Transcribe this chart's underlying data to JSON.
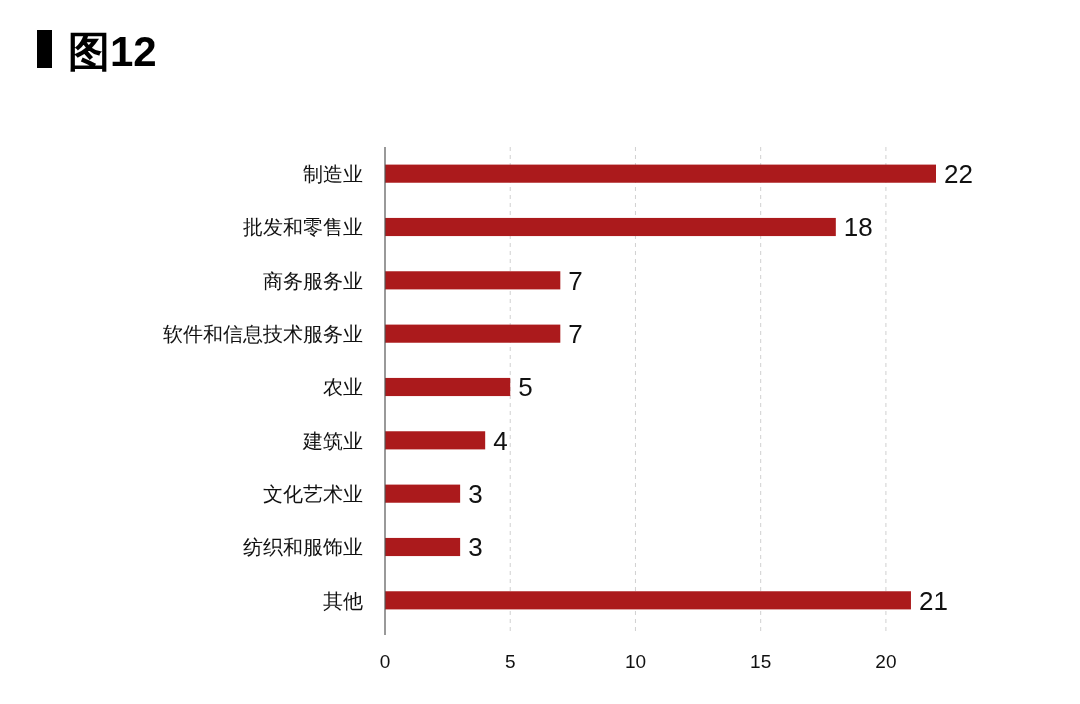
{
  "chart_data": {
    "type": "bar",
    "title": "图12",
    "orientation": "horizontal",
    "categories": [
      "制造业",
      "批发和零售业",
      "商务服务业",
      "软件和信息技术服务业",
      "农业",
      "建筑业",
      "文化艺术业",
      "纺织和服饰业",
      "其他"
    ],
    "values": [
      22,
      18,
      7,
      7,
      5,
      4,
      3,
      3,
      21
    ],
    "color": "#ab1a1c",
    "xlim": [
      0,
      22
    ],
    "xticks": [
      0,
      5,
      10,
      15,
      20
    ],
    "grid": "x",
    "data_labels": true
  }
}
